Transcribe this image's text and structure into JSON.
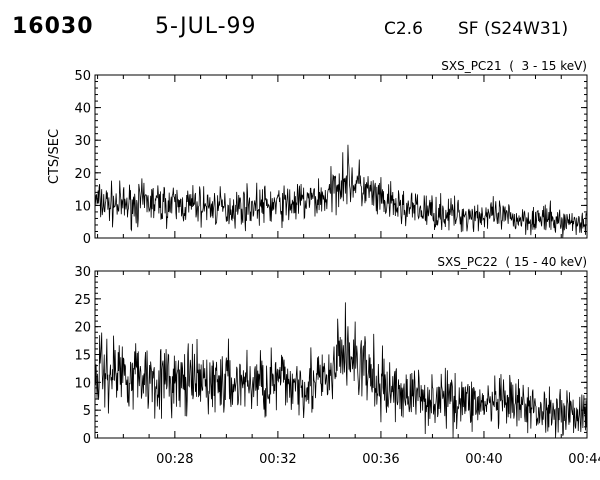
{
  "header": {
    "event_id": "16030",
    "date": "5-JUL-99",
    "goes_class": "C2.6",
    "flare_location": "SF (S24W31)"
  },
  "chart_data": [
    {
      "type": "line",
      "title": "SXS_PC21  (  3 - 15 keV)",
      "ylabel": "CTS/SEC",
      "xlabel": "",
      "x_range_ut": [
        "00:24:54",
        "00:44:00"
      ],
      "ylim": [
        0,
        50
      ],
      "yticks": [
        0,
        10,
        20,
        30,
        40,
        50
      ],
      "xticks": [
        "00:28",
        "00:32",
        "00:36",
        "00:40",
        "00:44"
      ],
      "xtick_labels_shown": false,
      "grid": false,
      "series": [
        {
          "x": [
            "00:25",
            "00:26",
            "00:27",
            "00:28",
            "00:29",
            "00:30",
            "00:31",
            "00:32",
            "00:33",
            "00:34",
            "00:34:30",
            "00:35",
            "00:36",
            "00:37",
            "00:38",
            "00:39",
            "00:40",
            "00:41",
            "00:42",
            "00:43",
            "00:44"
          ],
          "y": [
            11,
            10,
            11,
            10,
            10,
            9,
            10,
            10,
            11,
            13,
            19,
            17,
            11,
            9,
            8,
            7,
            7,
            6,
            6,
            5,
            5
          ]
        }
      ]
    },
    {
      "type": "line",
      "title": "SXS_PC22  ( 15 - 40 keV)",
      "ylabel": "",
      "xlabel": "",
      "x_range_ut": [
        "00:24:54",
        "00:44:00"
      ],
      "ylim": [
        0,
        30
      ],
      "yticks": [
        0,
        5,
        10,
        15,
        20,
        25,
        30
      ],
      "xticks": [
        "00:28",
        "00:32",
        "00:36",
        "00:40",
        "00:44"
      ],
      "xtick_labels_shown": true,
      "grid": false,
      "series": [
        {
          "x": [
            "00:25",
            "00:26",
            "00:27",
            "00:28",
            "00:29",
            "00:30",
            "00:31",
            "00:32",
            "00:33",
            "00:34",
            "00:34:30",
            "00:35",
            "00:36",
            "00:37",
            "00:38",
            "00:39",
            "00:40",
            "00:41",
            "00:42",
            "00:43",
            "00:44"
          ],
          "y": [
            12,
            12,
            11,
            10,
            10,
            10,
            10,
            10,
            10,
            10,
            16,
            14,
            9,
            8,
            7,
            7,
            6,
            6,
            5,
            5,
            4
          ]
        }
      ]
    }
  ]
}
